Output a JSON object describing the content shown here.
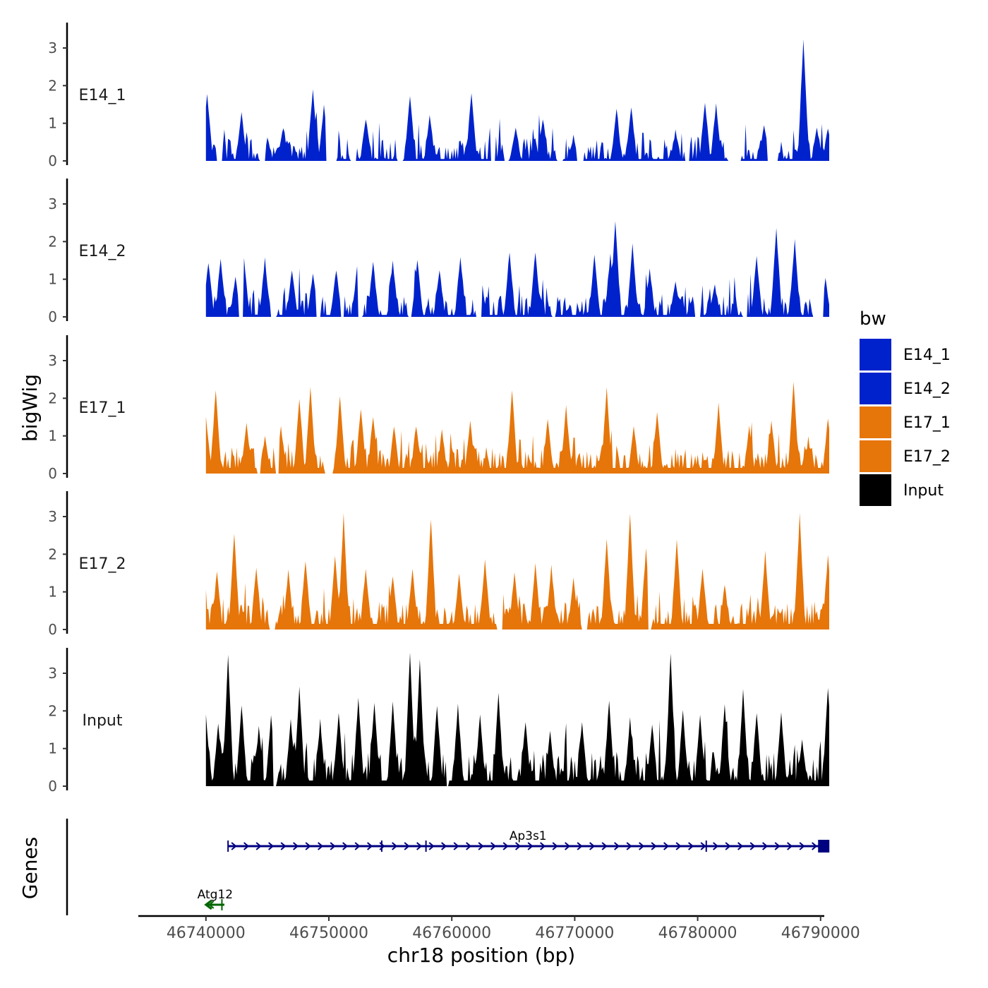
{
  "chart_data": {
    "type": "area",
    "title": "",
    "xlabel": "chr18 position (bp)",
    "ylabel": "bigWig",
    "genes_label": "Genes",
    "xlim": [
      46734500,
      46790300
    ],
    "ylim": [
      0,
      3.6
    ],
    "x_ticks": [
      46740000,
      46750000,
      46760000,
      46770000,
      46780000,
      46790000
    ],
    "x_tick_labels": [
      "46740000",
      "46750000",
      "46760000",
      "46770000",
      "46780000",
      "46790000"
    ],
    "y_ticks": [
      0,
      1,
      2,
      3
    ],
    "y_tick_labels": [
      "0",
      "1",
      "2",
      "3"
    ],
    "x_start": 46740000,
    "x_end": 46790700,
    "grid": false,
    "legend": {
      "title": "bw",
      "position": "right",
      "entries": [
        {
          "label": "E14_1",
          "color": "#0022CC"
        },
        {
          "label": "E14_2",
          "color": "#0022CC"
        },
        {
          "label": "E17_1",
          "color": "#E6750A"
        },
        {
          "label": "E17_2",
          "color": "#E6750A"
        },
        {
          "label": "Input",
          "color": "#000000"
        }
      ]
    },
    "series": [
      {
        "name": "E14_1",
        "color": "#0022CC",
        "peaks": [
          [
            46740100,
            1.75
          ],
          [
            46741200,
            0.35
          ],
          [
            46742900,
            1.2
          ],
          [
            46745000,
            0.55
          ],
          [
            46746300,
            0.85
          ],
          [
            46748700,
            1.9
          ],
          [
            46749600,
            1.4
          ],
          [
            46753000,
            1.1
          ],
          [
            46756600,
            1.7
          ],
          [
            46758200,
            1.15
          ],
          [
            46761600,
            1.75
          ],
          [
            46765200,
            0.85
          ],
          [
            46767400,
            1.1
          ],
          [
            46769900,
            0.6
          ],
          [
            46773400,
            1.35
          ],
          [
            46774600,
            1.4
          ],
          [
            46778200,
            0.75
          ],
          [
            46780600,
            1.5
          ],
          [
            46781500,
            1.45
          ],
          [
            46785400,
            0.9
          ],
          [
            46788600,
            3.2
          ],
          [
            46789700,
            0.85
          ],
          [
            46790600,
            0.8
          ]
        ],
        "gaps": [
          [
            46740900,
            46741300
          ],
          [
            46744400,
            46744800
          ],
          [
            46749800,
            46750600
          ],
          [
            46751800,
            46752200
          ],
          [
            46755600,
            46756000
          ],
          [
            46763200,
            46763500
          ],
          [
            46764300,
            46764600
          ],
          [
            46768600,
            46769000
          ],
          [
            46770200,
            46770700
          ],
          [
            46779000,
            46779300
          ],
          [
            46782500,
            46783500
          ],
          [
            46785700,
            46786500
          ]
        ]
      },
      {
        "name": "E14_2",
        "color": "#0022CC",
        "peaks": [
          [
            46740200,
            1.4
          ],
          [
            46741200,
            1.5
          ],
          [
            46742400,
            1.0
          ],
          [
            46743100,
            1.5
          ],
          [
            46744800,
            1.5
          ],
          [
            46747000,
            1.2
          ],
          [
            46748700,
            1.1
          ],
          [
            46750600,
            1.2
          ],
          [
            46752300,
            1.25
          ],
          [
            46753600,
            1.4
          ],
          [
            46755200,
            1.4
          ],
          [
            46757200,
            1.5
          ],
          [
            46759000,
            1.2
          ],
          [
            46760700,
            1.55
          ],
          [
            46762300,
            1.5
          ],
          [
            46764700,
            1.7
          ],
          [
            46766800,
            1.7
          ],
          [
            46771600,
            1.6
          ],
          [
            46772900,
            1.6
          ],
          [
            46773300,
            2.5
          ],
          [
            46774700,
            1.9
          ],
          [
            46776100,
            1.2
          ],
          [
            46778200,
            0.9
          ],
          [
            46780000,
            0.95
          ],
          [
            46781400,
            0.8
          ],
          [
            46784800,
            1.55
          ],
          [
            46786400,
            2.3
          ],
          [
            46787900,
            2.0
          ],
          [
            46790400,
            0.95
          ]
        ],
        "gaps": [
          [
            46742700,
            46743000
          ],
          [
            46745300,
            46745700
          ],
          [
            46749000,
            46749300
          ],
          [
            46751000,
            46751200
          ],
          [
            46752400,
            46752700
          ],
          [
            46756500,
            46756700
          ],
          [
            46762000,
            46762400
          ],
          [
            46768200,
            46768400
          ],
          [
            46779800,
            46780200
          ],
          [
            46783700,
            46784000
          ],
          [
            46789400,
            46790200
          ]
        ]
      },
      {
        "name": "E17_1",
        "color": "#E6750A",
        "peaks": [
          [
            46740000,
            1.45
          ],
          [
            46740800,
            2.2
          ],
          [
            46743300,
            1.3
          ],
          [
            46744800,
            0.95
          ],
          [
            46746100,
            1.2
          ],
          [
            46747600,
            1.95
          ],
          [
            46748500,
            2.25
          ],
          [
            46750900,
            2.0
          ],
          [
            46752600,
            1.7
          ],
          [
            46753600,
            1.5
          ],
          [
            46755300,
            1.2
          ],
          [
            46757100,
            1.25
          ],
          [
            46759200,
            1.1
          ],
          [
            46761500,
            1.35
          ],
          [
            46764900,
            2.2
          ],
          [
            46767800,
            1.4
          ],
          [
            46769300,
            1.75
          ],
          [
            46772600,
            2.2
          ],
          [
            46774800,
            1.25
          ],
          [
            46776700,
            1.6
          ],
          [
            46781700,
            1.8
          ],
          [
            46784200,
            1.2
          ],
          [
            46786000,
            1.35
          ],
          [
            46787800,
            2.4
          ],
          [
            46790600,
            1.4
          ]
        ],
        "gaps": [
          [
            46744200,
            46744400
          ],
          [
            46745700,
            46745900
          ],
          [
            46749700,
            46750300
          ]
        ]
      },
      {
        "name": "E17_2",
        "color": "#E6750A",
        "peaks": [
          [
            46740900,
            1.5
          ],
          [
            46742300,
            2.5
          ],
          [
            46744100,
            1.6
          ],
          [
            46746700,
            1.5
          ],
          [
            46748100,
            1.8
          ],
          [
            46750500,
            1.9
          ],
          [
            46751200,
            3.0
          ],
          [
            46753000,
            1.6
          ],
          [
            46755200,
            1.4
          ],
          [
            46756800,
            1.6
          ],
          [
            46758300,
            2.9
          ],
          [
            46760600,
            1.45
          ],
          [
            46762700,
            1.8
          ],
          [
            46765100,
            1.5
          ],
          [
            46766800,
            1.7
          ],
          [
            46768100,
            1.65
          ],
          [
            46769900,
            1.3
          ],
          [
            46772600,
            2.35
          ],
          [
            46774500,
            3.0
          ],
          [
            46775800,
            2.1
          ],
          [
            46778300,
            2.35
          ],
          [
            46780400,
            1.6
          ],
          [
            46782200,
            1.15
          ],
          [
            46785500,
            2.0
          ],
          [
            46788300,
            3.0
          ],
          [
            46790600,
            1.9
          ]
        ],
        "gaps": [
          [
            46745200,
            46745600
          ],
          [
            46763700,
            46764100
          ],
          [
            46770600,
            46771000
          ],
          [
            46776000,
            46776200
          ]
        ]
      },
      {
        "name": "Input",
        "color": "#000000",
        "peaks": [
          [
            46740000,
            1.85
          ],
          [
            46741000,
            1.6
          ],
          [
            46741800,
            3.4
          ],
          [
            46742900,
            2.1
          ],
          [
            46744300,
            1.5
          ],
          [
            46745300,
            1.8
          ],
          [
            46746900,
            1.7
          ],
          [
            46747600,
            2.6
          ],
          [
            46749300,
            1.7
          ],
          [
            46750800,
            1.9
          ],
          [
            46752400,
            2.3
          ],
          [
            46753700,
            2.2
          ],
          [
            46755200,
            2.2
          ],
          [
            46756600,
            3.5
          ],
          [
            46757400,
            3.3
          ],
          [
            46758800,
            2.1
          ],
          [
            46760500,
            2.1
          ],
          [
            46762300,
            1.9
          ],
          [
            46763800,
            2.4
          ],
          [
            46766000,
            1.7
          ],
          [
            46768000,
            1.4
          ],
          [
            46770600,
            1.65
          ],
          [
            46772800,
            2.25
          ],
          [
            46774500,
            1.75
          ],
          [
            46776300,
            1.6
          ],
          [
            46777800,
            3.5
          ],
          [
            46778800,
            1.95
          ],
          [
            46780200,
            1.8
          ],
          [
            46782200,
            2.1
          ],
          [
            46783700,
            2.5
          ],
          [
            46784800,
            1.9
          ],
          [
            46786800,
            1.9
          ],
          [
            46788500,
            1.2
          ],
          [
            46790600,
            2.6
          ]
        ],
        "gaps": [
          [
            46745500,
            46745700
          ],
          [
            46759600,
            46759700
          ]
        ]
      }
    ],
    "genes": [
      {
        "name": "Ap3s1",
        "start": 46741800,
        "end": 46790600,
        "strand": "+",
        "color": "#000080",
        "exon_marks": [
          46741800,
          46754300,
          46757900,
          46780700
        ]
      },
      {
        "name": "Atg12",
        "start": 46740000,
        "end": 46741500,
        "strand": "-",
        "color": "#006400",
        "exon_marks": [
          46741300
        ]
      }
    ]
  }
}
